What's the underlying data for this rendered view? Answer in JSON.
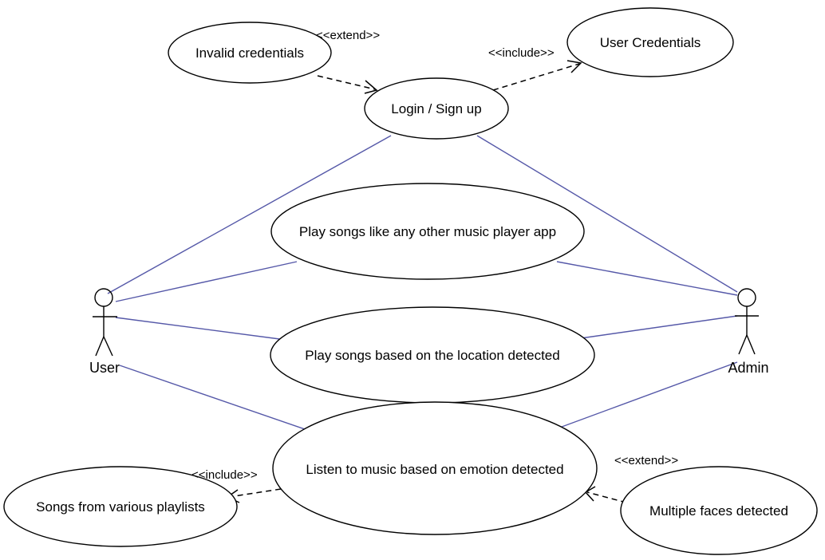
{
  "use_cases": {
    "invalid_credentials": "Invalid credentials",
    "user_credentials": "User Credentials",
    "login_signup": "Login / Sign up",
    "play_like_other": "Play songs like any other music player app",
    "play_location": "Play songs based on the location detected",
    "listen_emotion": "Listen to music based on emotion detected",
    "songs_playlists": "Songs from various playlists",
    "multiple_faces": "Multiple faces detected"
  },
  "actors": {
    "user": "User",
    "admin": "Admin"
  },
  "stereotypes": {
    "extend_top": "<<extend>>",
    "include_top": "<<include>>",
    "include_bottom": "<<include>>",
    "extend_bottom": "<<extend>>"
  },
  "colors": {
    "association_line": "#5558a8",
    "outline": "#000000",
    "background": "#ffffff"
  }
}
